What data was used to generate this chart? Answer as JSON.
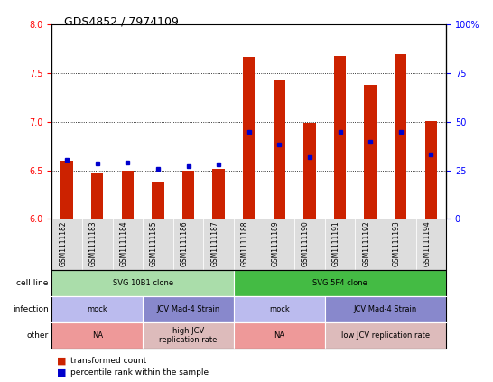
{
  "title": "GDS4852 / 7974109",
  "samples": [
    "GSM1111182",
    "GSM1111183",
    "GSM1111184",
    "GSM1111185",
    "GSM1111186",
    "GSM1111187",
    "GSM1111188",
    "GSM1111189",
    "GSM1111190",
    "GSM1111191",
    "GSM1111192",
    "GSM1111193",
    "GSM1111194"
  ],
  "bar_values": [
    6.6,
    6.47,
    6.5,
    6.38,
    6.5,
    6.52,
    7.67,
    7.43,
    6.99,
    7.68,
    7.38,
    7.7,
    7.01
  ],
  "percentile_values": [
    6.61,
    6.57,
    6.58,
    6.52,
    6.54,
    6.56,
    6.9,
    6.77,
    6.64,
    6.9,
    6.79,
    6.9,
    6.66
  ],
  "bar_bottom": 6.0,
  "ylim_left": [
    6.0,
    8.0
  ],
  "ylim_right": [
    0,
    100
  ],
  "left_ticks": [
    6.0,
    6.5,
    7.0,
    7.5,
    8.0
  ],
  "right_ticks": [
    0,
    25,
    50,
    75,
    100
  ],
  "right_tick_labels": [
    "0",
    "25",
    "50",
    "75",
    "100%"
  ],
  "bar_color": "#cc2200",
  "blue_color": "#0000cc",
  "grid_dotted_at": [
    6.5,
    7.0,
    7.5
  ],
  "annotation_rows": [
    {
      "label": "cell line",
      "segments": [
        {
          "span": [
            0,
            5
          ],
          "text": "SVG 10B1 clone",
          "color": "#aaddaa"
        },
        {
          "span": [
            6,
            12
          ],
          "text": "SVG 5F4 clone",
          "color": "#44bb44"
        }
      ]
    },
    {
      "label": "infection",
      "segments": [
        {
          "span": [
            0,
            2
          ],
          "text": "mock",
          "color": "#bbbbee"
        },
        {
          "span": [
            3,
            5
          ],
          "text": "JCV Mad-4 Strain",
          "color": "#8888cc"
        },
        {
          "span": [
            6,
            8
          ],
          "text": "mock",
          "color": "#bbbbee"
        },
        {
          "span": [
            9,
            12
          ],
          "text": "JCV Mad-4 Strain",
          "color": "#8888cc"
        }
      ]
    },
    {
      "label": "other",
      "segments": [
        {
          "span": [
            0,
            2
          ],
          "text": "NA",
          "color": "#ee9999"
        },
        {
          "span": [
            3,
            5
          ],
          "text": "high JCV\nreplication rate",
          "color": "#ddbbbb"
        },
        {
          "span": [
            6,
            8
          ],
          "text": "NA",
          "color": "#ee9999"
        },
        {
          "span": [
            9,
            12
          ],
          "text": "low JCV replication rate",
          "color": "#ddbbbb"
        }
      ]
    }
  ],
  "legend_items": [
    {
      "color": "#cc2200",
      "label": "transformed count"
    },
    {
      "color": "#0000cc",
      "label": "percentile rank within the sample"
    }
  ]
}
